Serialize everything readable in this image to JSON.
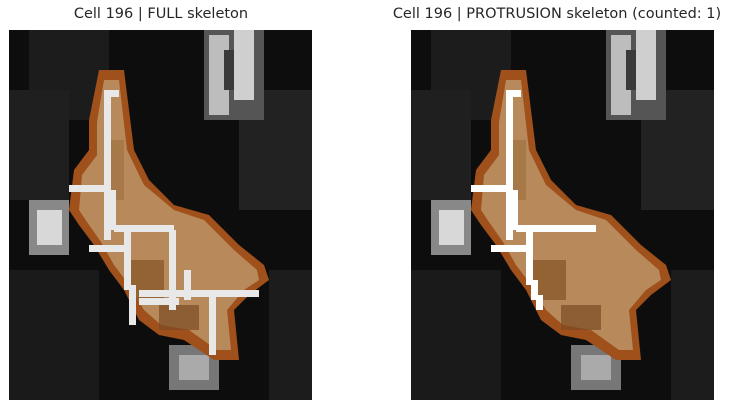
{
  "panels": [
    {
      "title": "Cell 196 | FULL skeleton"
    },
    {
      "title": "Cell 196 | PROTRUSION skeleton (counted: 1)"
    }
  ],
  "colors": {
    "background": "#ffffff",
    "image_background": "#000000",
    "cell_outline": "#a0501a",
    "cell_fill": "#b8895a",
    "cell_fill_dark": "#8a5a2a",
    "skeleton": "#e8e8e8"
  }
}
